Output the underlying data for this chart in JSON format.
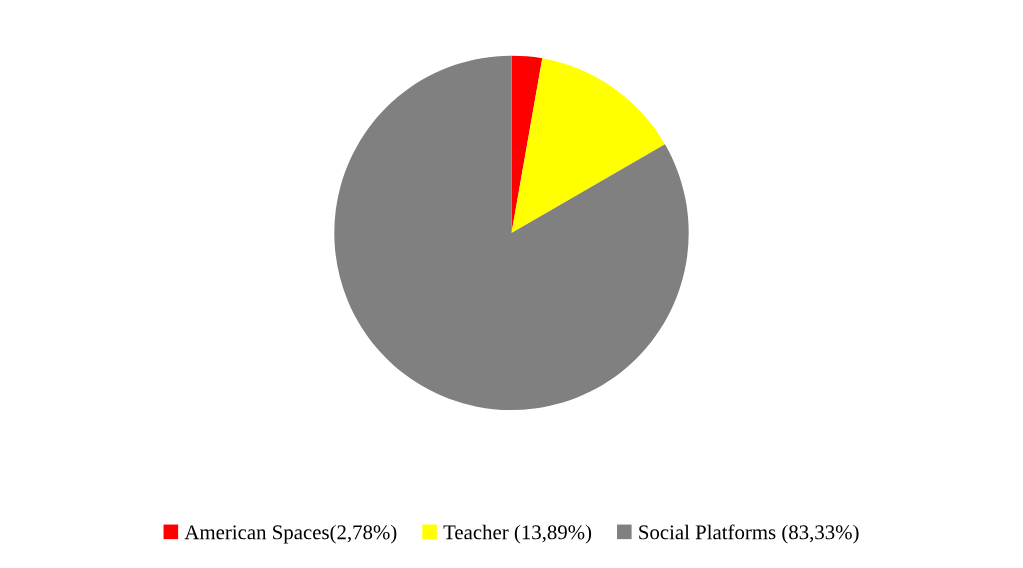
{
  "chart_data": {
    "type": "pie",
    "categories": [
      "American Spaces(2,78%)",
      "Teacher (13,89%)",
      "Social Platforms (83,33%)"
    ],
    "values": [
      2.78,
      13.89,
      83.33
    ],
    "colors": [
      "#ff0000",
      "#ffff00",
      "#808080"
    ],
    "legend": "bottom"
  }
}
